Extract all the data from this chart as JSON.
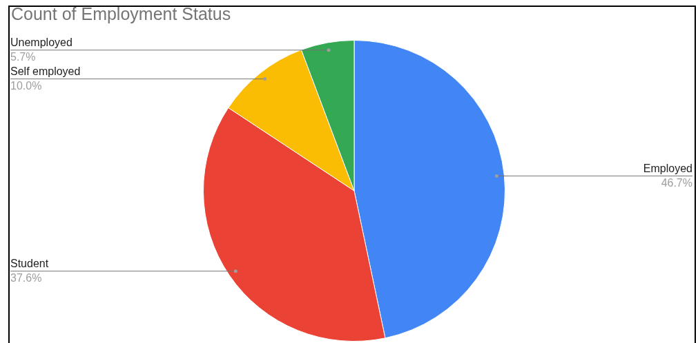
{
  "chart_data": {
    "type": "pie",
    "title": "Count of Employment Status",
    "categories": [
      "Employed",
      "Student",
      "Self employed",
      "Unemployed"
    ],
    "values": [
      46.7,
      37.6,
      10.0,
      5.7
    ],
    "value_labels": [
      "46.7%",
      "37.6%",
      "10.0%",
      "5.7%"
    ],
    "colors": [
      "#4285f4",
      "#ea4335",
      "#fbbc04",
      "#34a853"
    ],
    "legend": false
  }
}
